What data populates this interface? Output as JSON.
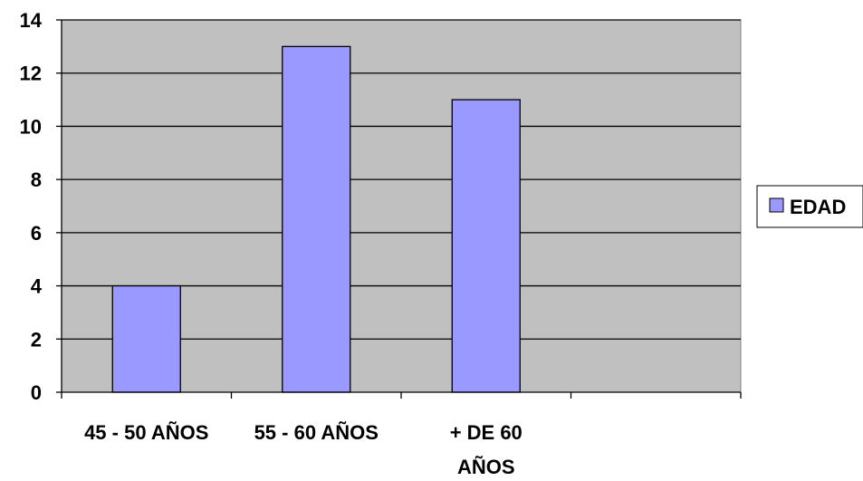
{
  "chart_data": {
    "type": "bar",
    "categories": [
      "45 - 50 AÑOS",
      "55 - 60 AÑOS",
      "+ DE 60 AÑOS",
      ""
    ],
    "category_lines": [
      [
        "45 - 50 AÑOS"
      ],
      [
        "55 - 60 AÑOS"
      ],
      [
        "+ DE 60",
        "AÑOS"
      ],
      []
    ],
    "series": [
      {
        "name": "EDAD",
        "values": [
          4,
          13,
          11,
          null
        ]
      }
    ],
    "ylim": [
      0,
      14
    ],
    "yticks": [
      0,
      2,
      4,
      6,
      8,
      10,
      12,
      14
    ],
    "grid": true,
    "legend_position": "right",
    "colors": {
      "plot_background": "#c0c0c0",
      "bar_fill": "#9999ff",
      "bar_stroke": "#000000",
      "grid": "#000000"
    },
    "title": "",
    "xlabel": "",
    "ylabel": ""
  }
}
